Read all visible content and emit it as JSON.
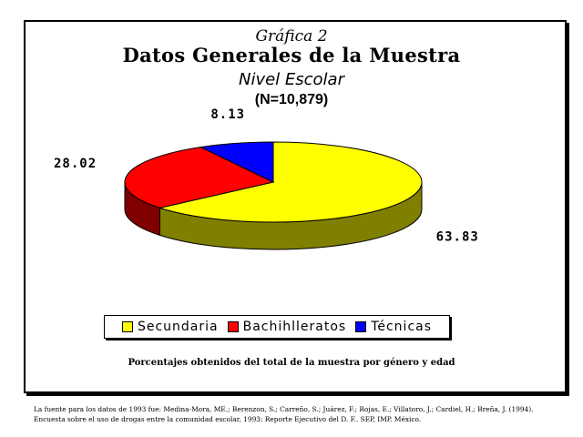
{
  "header": {
    "kicker": "Gráfica 2",
    "title": "Datos Generales de la Muestra",
    "subtitle": "Nivel Escolar",
    "sample": "(N=10,879)"
  },
  "chart_data": {
    "type": "pie",
    "three_d": true,
    "categories": [
      "Secundaria",
      "Bachihlleratos",
      "Técnicas"
    ],
    "values": [
      63.83,
      28.02,
      8.13
    ],
    "data_labels": [
      "63.83",
      "28.02",
      "8.13"
    ],
    "colors": [
      "#ffff00",
      "#ff0000",
      "#0000ff"
    ],
    "side_colors": [
      "#808000",
      "#800000",
      "#000080"
    ],
    "legend_position": "bottom"
  },
  "legend": {
    "items": [
      {
        "label": "Secundaria",
        "color": "#ffff00"
      },
      {
        "label": "Bachihlleratos",
        "color": "#ff0000"
      },
      {
        "label": "Técnicas",
        "color": "#0000ff"
      }
    ]
  },
  "footnote": "Porcentajes obtenidos del total de la muestra por género y edad",
  "source": {
    "line1": "La fuente para los datos de 1993 fue: Medina-Mora, ME.; Berenzon, S.; Carreño, S.; Juárez, F.; Rojas, E.; Villatoro, J.; Cardiel, H.; Breña, J. (1994).",
    "line2": "Encuesta sobre el uso de drogas entre la comunidad escolar, 1993: Reporte Ejecutivo del D. F.. SEP, IMP. México."
  }
}
